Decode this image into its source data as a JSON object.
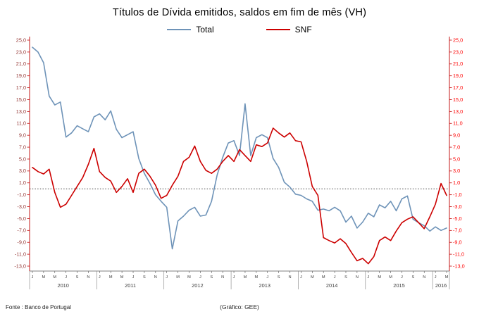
{
  "title": "Títulos de Dívida emitidos, saldos em fim de mês  (VH)",
  "legend": [
    {
      "label": "Total",
      "color": "#6e93b8"
    },
    {
      "label": "SNF",
      "color": "#cc0000"
    }
  ],
  "footer": {
    "source": "Fonte : Banco de Portugal",
    "credit": "(Gráfico: GEE)"
  },
  "axes": {
    "left_label_color": "#953735",
    "right_label_color": "#ff0000",
    "axis_line_color": "#c00000",
    "x_label_color": "#404040",
    "zero_line_color": "#333333"
  },
  "chart_data": {
    "type": "line",
    "title": "Títulos de Dívida emitidos, saldos em fim de mês  (VH)",
    "xlabel": "",
    "ylabel": "",
    "ylim": [
      -13,
      25
    ],
    "ytick_step": 2,
    "ytick_labels": [
      "25,0",
      "23,0",
      "21,0",
      "19,0",
      "17,0",
      "15,0",
      "13,0",
      "11,0",
      "9,0",
      "7,0",
      "5,0",
      "3,0",
      "1,0",
      "-1,0",
      "-3,0",
      "-5,0",
      "-7,0",
      "-9,0",
      "-11,0",
      "-13,0"
    ],
    "zero_line": true,
    "grid": false,
    "legend_position": "top",
    "month_tick_letters": [
      "J",
      "M",
      "M",
      "J",
      "S",
      "N"
    ],
    "years": [
      {
        "label": "2010",
        "months": 12
      },
      {
        "label": "2011",
        "months": 12
      },
      {
        "label": "2012",
        "months": 12
      },
      {
        "label": "2013",
        "months": 12
      },
      {
        "label": "2014",
        "months": 12
      },
      {
        "label": "2015",
        "months": 12
      },
      {
        "label": "2016",
        "months": 3
      }
    ],
    "series": [
      {
        "name": "Total",
        "color": "#6e93b8",
        "values": [
          23.8,
          23.0,
          21.2,
          15.6,
          14.1,
          14.6,
          8.7,
          9.4,
          10.6,
          10.1,
          9.6,
          12.1,
          12.6,
          11.6,
          13.1,
          10.0,
          8.6,
          9.1,
          9.6,
          5.1,
          2.6,
          0.9,
          -1.0,
          -2.1,
          -3.1,
          -10.1,
          -5.4,
          -4.6,
          -3.6,
          -3.1,
          -4.6,
          -4.4,
          -2.1,
          2.3,
          5.3,
          7.7,
          8.1,
          5.6,
          14.3,
          5.6,
          8.6,
          9.1,
          8.6,
          5.1,
          3.6,
          1.1,
          0.3,
          -0.9,
          -1.1,
          -1.7,
          -2.1,
          -3.6,
          -3.4,
          -3.7,
          -3.1,
          -3.7,
          -5.6,
          -4.6,
          -6.6,
          -5.6,
          -4.1,
          -4.7,
          -2.7,
          -3.2,
          -2.1,
          -3.7,
          -1.7,
          -1.2,
          -5.1,
          -5.7,
          -6.2,
          -7.1,
          -6.4,
          -7.0,
          -6.6
        ]
      },
      {
        "name": "SNF",
        "color": "#cc0000",
        "values": [
          3.6,
          2.9,
          2.5,
          3.3,
          -0.6,
          -3.1,
          -2.6,
          -1.1,
          0.4,
          1.9,
          4.1,
          6.8,
          2.9,
          1.9,
          1.3,
          -0.6,
          0.4,
          1.7,
          -0.6,
          2.6,
          3.3,
          2.1,
          0.6,
          -1.6,
          -1.1,
          0.6,
          2.1,
          4.6,
          5.3,
          7.2,
          4.6,
          3.1,
          2.6,
          3.3,
          4.6,
          5.6,
          4.6,
          6.6,
          5.6,
          4.6,
          7.4,
          7.1,
          7.7,
          10.2,
          9.4,
          8.7,
          9.4,
          8.1,
          7.9,
          4.6,
          0.4,
          -1.1,
          -8.2,
          -8.7,
          -9.1,
          -8.4,
          -9.2,
          -10.7,
          -12.1,
          -11.7,
          -12.6,
          -11.4,
          -8.7,
          -8.1,
          -8.7,
          -7.1,
          -5.7,
          -5.1,
          -4.7,
          -5.7,
          -6.7,
          -4.7,
          -2.6,
          0.9,
          -1.1
        ]
      }
    ]
  }
}
